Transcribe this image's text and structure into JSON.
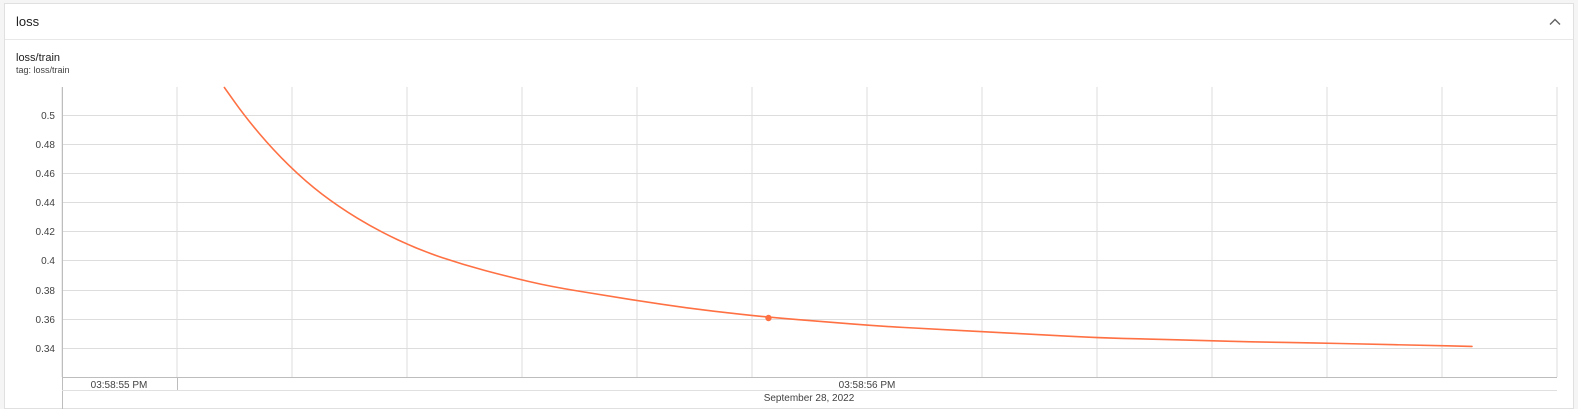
{
  "card": {
    "title": "loss"
  },
  "chart_header": {
    "title": "loss/train",
    "tag": "tag: loss/train"
  },
  "icons": {
    "collapse": "chevron-up-icon"
  },
  "colors": {
    "line": "#ff7043",
    "grid": "#dddddd",
    "axis": "#bdbdbd"
  },
  "chart_data": {
    "type": "line",
    "title": "loss/train",
    "ylim": [
      0.32,
      0.519
    ],
    "y_ticks": [
      0.34,
      0.36,
      0.38,
      0.4,
      0.42,
      0.44,
      0.46,
      0.48,
      0.5
    ],
    "y_tick_labels": [
      "0.34",
      "0.36",
      "0.38",
      "0.4",
      "0.42",
      "0.44",
      "0.46",
      "0.48",
      "0.5"
    ],
    "x_tick_labels": [
      "03:58:55 PM",
      "03:58:56 PM"
    ],
    "x_date_label": "September 28, 2022",
    "grid": true,
    "series": [
      {
        "points": [
          [
            0.0,
            0.519
          ],
          [
            0.02,
            0.498
          ],
          [
            0.045,
            0.476
          ],
          [
            0.075,
            0.454
          ],
          [
            0.105,
            0.437
          ],
          [
            0.14,
            0.421
          ],
          [
            0.18,
            0.407
          ],
          [
            0.22,
            0.397
          ],
          [
            0.26,
            0.389
          ],
          [
            0.3,
            0.382
          ],
          [
            0.35,
            0.376
          ],
          [
            0.4,
            0.37
          ],
          [
            0.45,
            0.365
          ],
          [
            0.5,
            0.361
          ],
          [
            0.55,
            0.358
          ],
          [
            0.6,
            0.355
          ],
          [
            0.65,
            0.353
          ],
          [
            0.7,
            0.351
          ],
          [
            0.75,
            0.349
          ],
          [
            0.8,
            0.347
          ],
          [
            0.85,
            0.346
          ],
          [
            0.9,
            0.345
          ],
          [
            0.95,
            0.344
          ],
          [
            1.0,
            0.3435
          ],
          [
            1.05,
            0.3425
          ],
          [
            1.1,
            0.3418
          ],
          [
            1.146,
            0.341
          ]
        ],
        "highlight_point": [
          0.5,
          0.3605
        ]
      }
    ]
  }
}
